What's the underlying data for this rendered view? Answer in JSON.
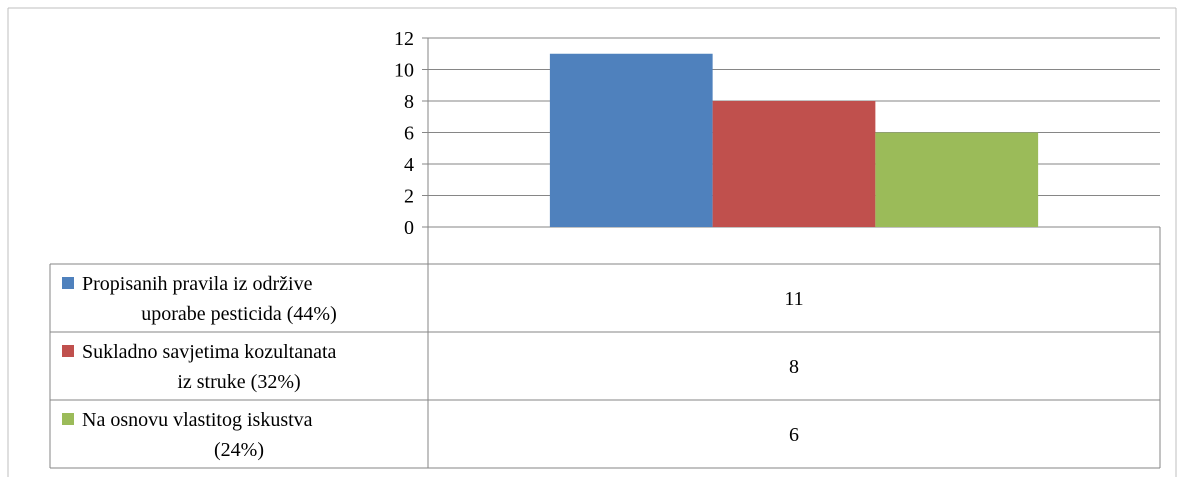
{
  "chart_data": {
    "type": "bar",
    "categories": [
      ""
    ],
    "series": [
      {
        "name": "Propisanih pravila iz održive uporabe pesticida (44%)",
        "label_lines": [
          "Propisanih pravila iz održive",
          "uporabe pesticida (44%)"
        ],
        "values": [
          11
        ],
        "color": "#4F81BD"
      },
      {
        "name": "Sukladno savjetima kozultanata iz struke (32%)",
        "label_lines": [
          "Sukladno savjetima kozultanata",
          "iz struke (32%)"
        ],
        "values": [
          8
        ],
        "color": "#C0504D"
      },
      {
        "name": "Na osnovu vlastitog iskustva (24%)",
        "label_lines": [
          "Na osnovu vlastitog iskustva",
          "(24%)"
        ],
        "values": [
          6
        ],
        "color": "#9BBB59"
      }
    ],
    "ylim": [
      0,
      12
    ],
    "yticks": [
      "0",
      "2",
      "4",
      "6",
      "8",
      "10",
      "12"
    ],
    "grid": true,
    "legend": "data table below chart",
    "title": "",
    "xlabel": "",
    "ylabel": ""
  }
}
